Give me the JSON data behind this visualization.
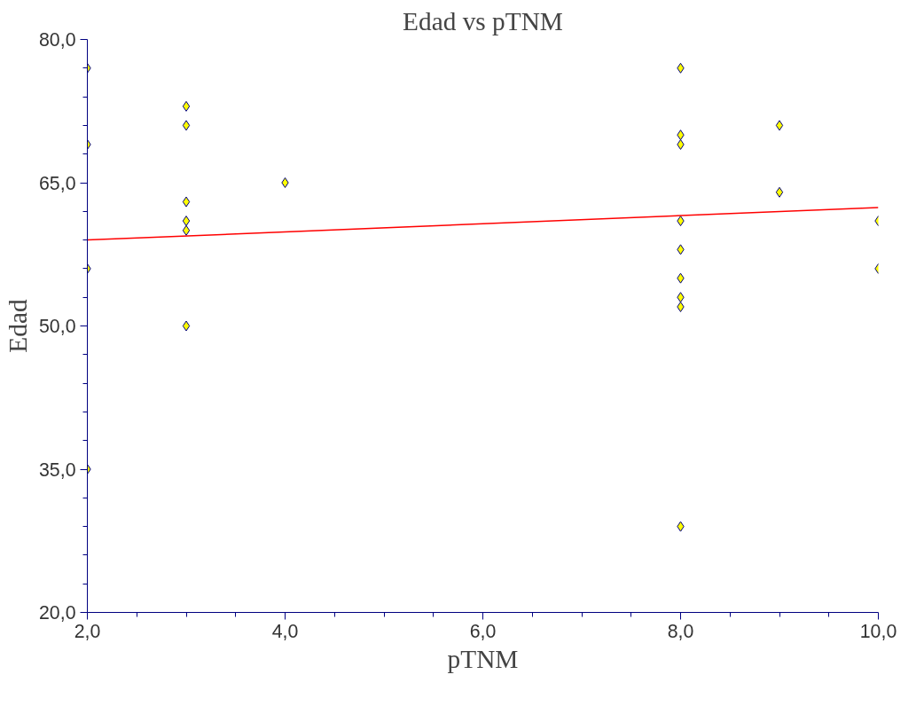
{
  "chart_data": {
    "type": "scatter",
    "title": "Edad vs pTNM",
    "xlabel": "pTNM",
    "ylabel": "Edad",
    "xlim": [
      2,
      10
    ],
    "ylim": [
      20,
      80
    ],
    "xticks": [
      {
        "value": 2,
        "label": "2,0"
      },
      {
        "value": 4,
        "label": "4,0"
      },
      {
        "value": 6,
        "label": "6,0"
      },
      {
        "value": 8,
        "label": "8,0"
      },
      {
        "value": 10,
        "label": "10,0"
      }
    ],
    "yticks": [
      {
        "value": 20,
        "label": "20,0"
      },
      {
        "value": 35,
        "label": "35,0"
      },
      {
        "value": 50,
        "label": "50,0"
      },
      {
        "value": 65,
        "label": "65,0"
      },
      {
        "value": 80,
        "label": "80,0"
      }
    ],
    "grid": false,
    "series": [
      {
        "marker": "diamond",
        "color": "#ffff00",
        "x": [
          2,
          2,
          2,
          2,
          3,
          3,
          3,
          3,
          3,
          3,
          4,
          8,
          8,
          8,
          8,
          8,
          8,
          8,
          8,
          8,
          9,
          9,
          10,
          10
        ],
        "values": [
          77,
          69,
          56,
          35,
          73,
          71,
          63,
          61,
          60,
          50,
          65,
          77,
          70,
          69,
          61,
          58,
          55,
          53,
          52,
          29,
          71,
          64,
          61,
          56
        ]
      },
      {
        "type": "line",
        "marker": "none",
        "color": "#ff0000",
        "x": [
          2,
          10
        ],
        "values": [
          59.0,
          62.4
        ]
      }
    ]
  }
}
